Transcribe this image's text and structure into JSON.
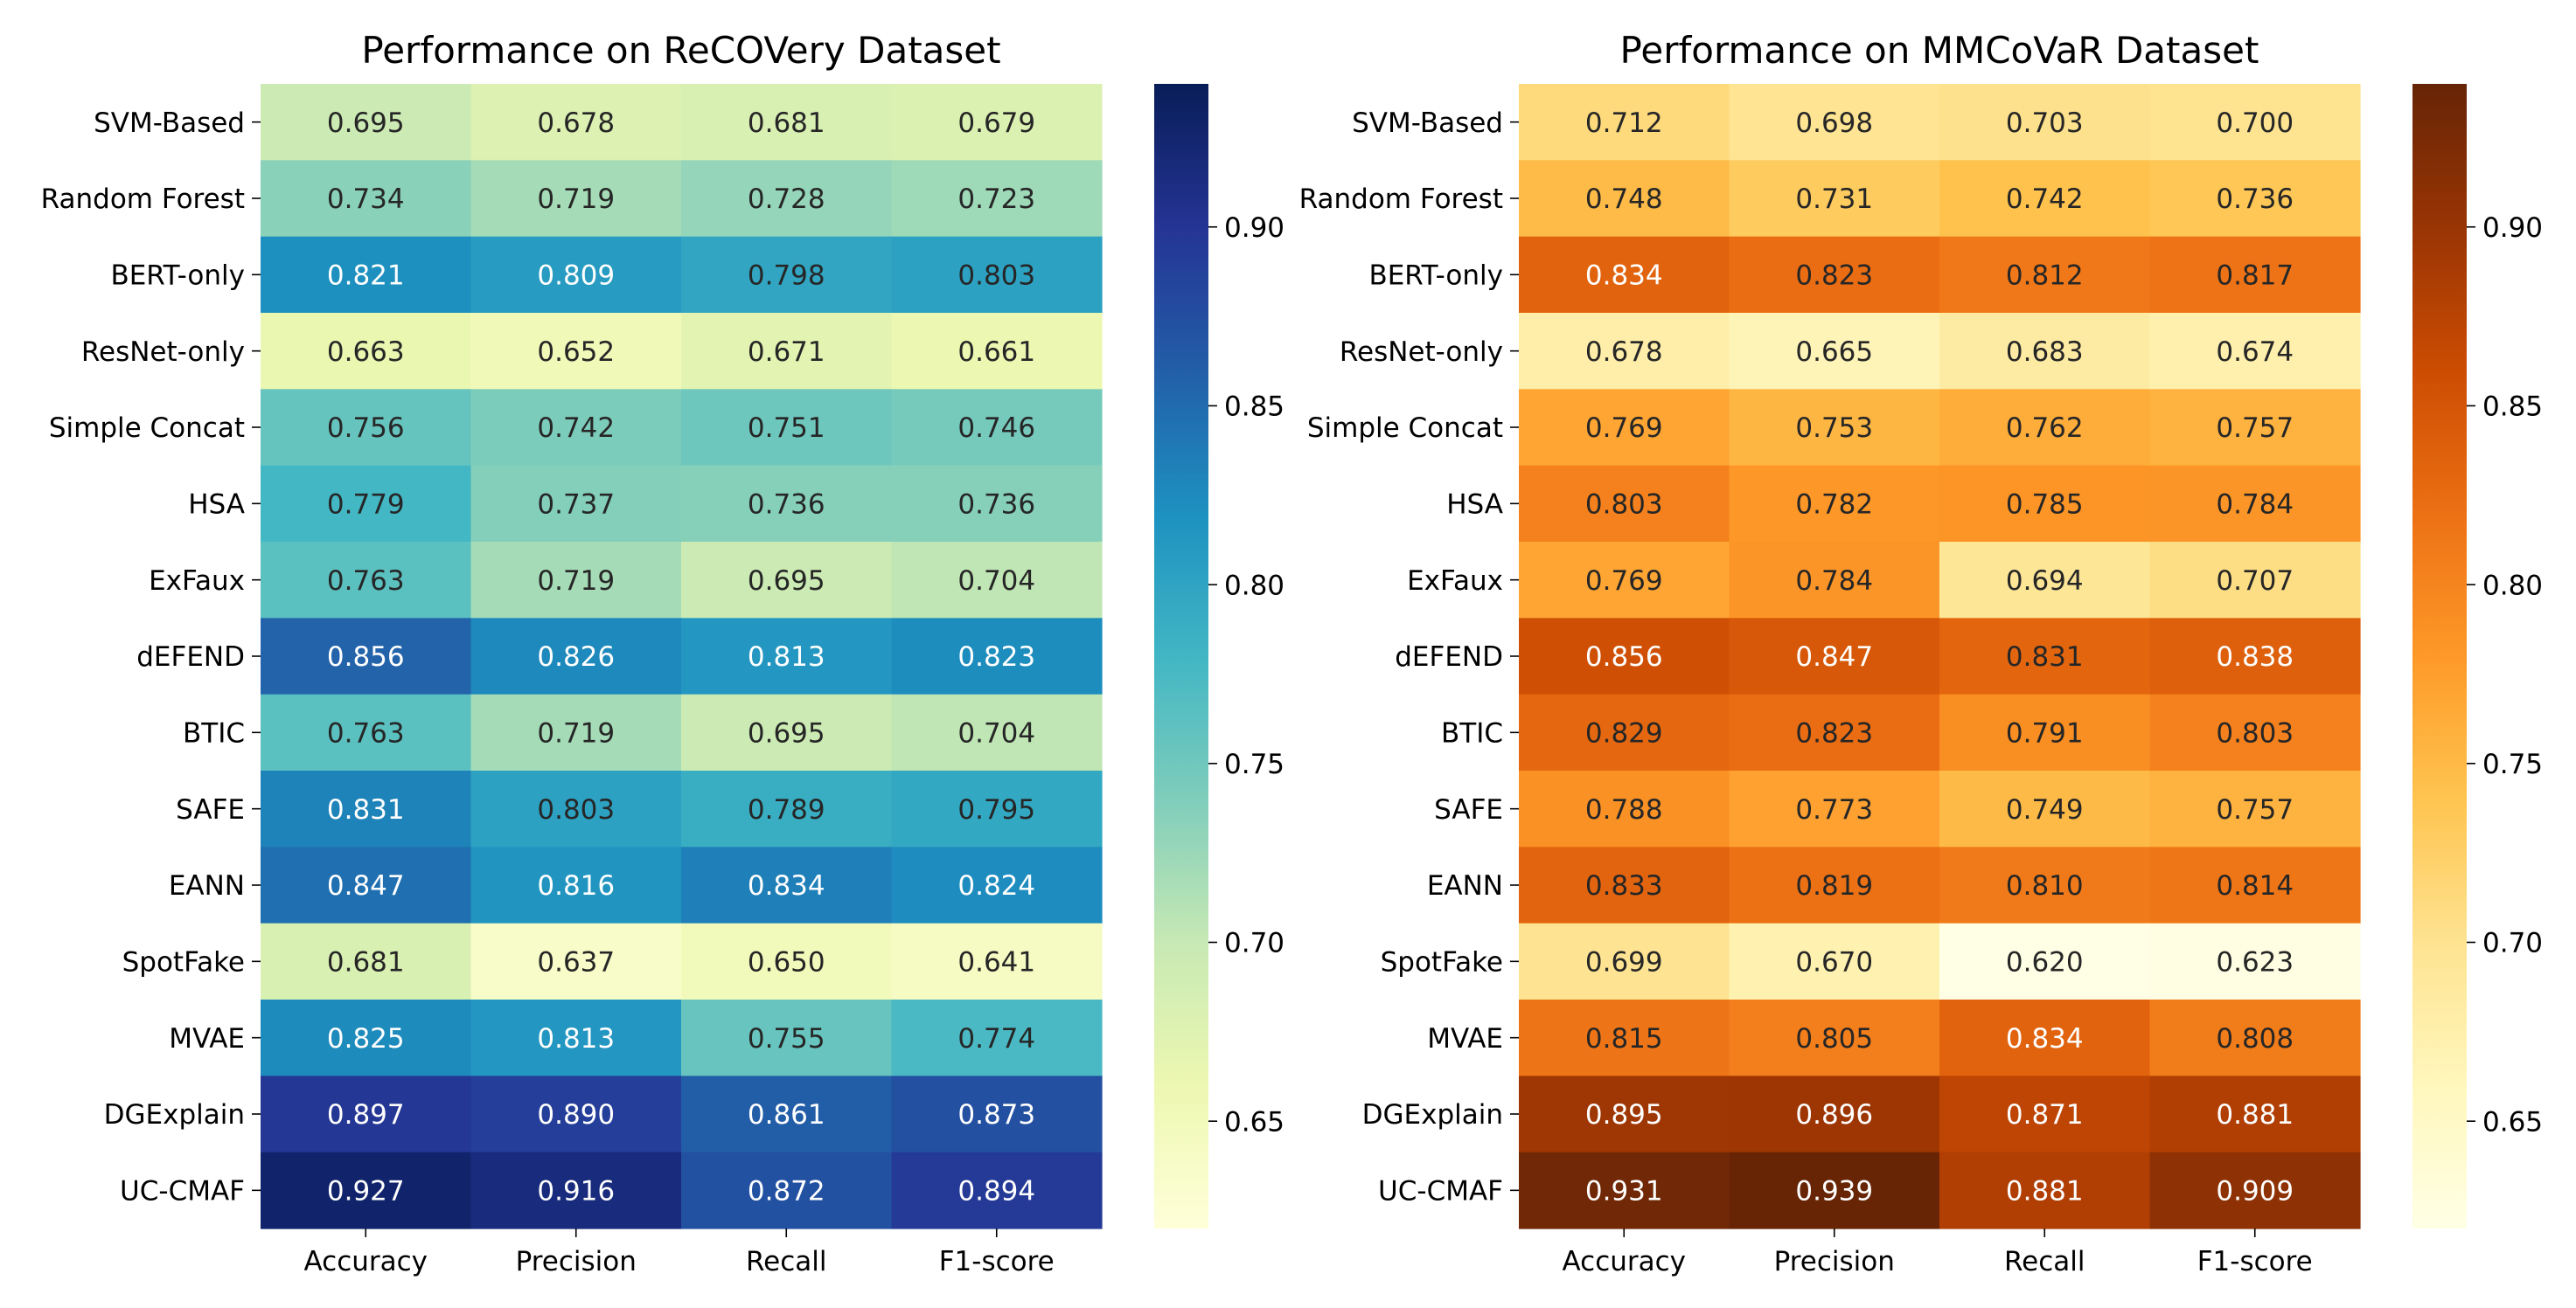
{
  "chart_data": [
    {
      "type": "heatmap",
      "title": "Performance on ReCOVery Dataset",
      "colormap": "YlGnBu",
      "rows": [
        "SVM-Based",
        "Random Forest",
        "BERT-only",
        "ResNet-only",
        "Simple Concat",
        "HSA",
        "ExFaux",
        "dEFEND",
        "BTIC",
        "SAFE",
        "EANN",
        "SpotFake",
        "MVAE",
        "DGExplain",
        "UC-CMAF"
      ],
      "columns": [
        "Accuracy",
        "Precision",
        "Recall",
        "F1-score"
      ],
      "values": [
        [
          0.695,
          0.678,
          0.681,
          0.679
        ],
        [
          0.734,
          0.719,
          0.728,
          0.723
        ],
        [
          0.821,
          0.809,
          0.798,
          0.803
        ],
        [
          0.663,
          0.652,
          0.671,
          0.661
        ],
        [
          0.756,
          0.742,
          0.751,
          0.746
        ],
        [
          0.779,
          0.737,
          0.736,
          0.736
        ],
        [
          0.763,
          0.719,
          0.695,
          0.704
        ],
        [
          0.856,
          0.826,
          0.813,
          0.823
        ],
        [
          0.763,
          0.719,
          0.695,
          0.704
        ],
        [
          0.831,
          0.803,
          0.789,
          0.795
        ],
        [
          0.847,
          0.816,
          0.834,
          0.824
        ],
        [
          0.681,
          0.637,
          0.65,
          0.641
        ],
        [
          0.825,
          0.813,
          0.755,
          0.774
        ],
        [
          0.897,
          0.89,
          0.861,
          0.873
        ],
        [
          0.927,
          0.916,
          0.872,
          0.894
        ]
      ],
      "color_range": [
        0.62,
        0.94
      ],
      "colorbar_ticks": [
        0.65,
        0.7,
        0.75,
        0.8,
        0.85,
        0.9
      ],
      "colorbar_tick_labels": [
        "0.65",
        "0.70",
        "0.75",
        "0.80",
        "0.85",
        "0.90"
      ],
      "colors": [
        "#ffffd9",
        "#edf8b1",
        "#c7e9b4",
        "#7fcdbb",
        "#41b6c4",
        "#1d91c0",
        "#225ea8",
        "#253494",
        "#081d58"
      ]
    },
    {
      "type": "heatmap",
      "title": "Performance on MMCoVaR Dataset",
      "colormap": "YlOrBr",
      "rows": [
        "SVM-Based",
        "Random Forest",
        "BERT-only",
        "ResNet-only",
        "Simple Concat",
        "HSA",
        "ExFaux",
        "dEFEND",
        "BTIC",
        "SAFE",
        "EANN",
        "SpotFake",
        "MVAE",
        "DGExplain",
        "UC-CMAF"
      ],
      "columns": [
        "Accuracy",
        "Precision",
        "Recall",
        "F1-score"
      ],
      "values": [
        [
          0.712,
          0.698,
          0.703,
          0.7
        ],
        [
          0.748,
          0.731,
          0.742,
          0.736
        ],
        [
          0.834,
          0.823,
          0.812,
          0.817
        ],
        [
          0.678,
          0.665,
          0.683,
          0.674
        ],
        [
          0.769,
          0.753,
          0.762,
          0.757
        ],
        [
          0.803,
          0.782,
          0.785,
          0.784
        ],
        [
          0.769,
          0.784,
          0.694,
          0.707
        ],
        [
          0.856,
          0.847,
          0.831,
          0.838
        ],
        [
          0.829,
          0.823,
          0.791,
          0.803
        ],
        [
          0.788,
          0.773,
          0.749,
          0.757
        ],
        [
          0.833,
          0.819,
          0.81,
          0.814
        ],
        [
          0.699,
          0.67,
          0.62,
          0.623
        ],
        [
          0.815,
          0.805,
          0.834,
          0.808
        ],
        [
          0.895,
          0.896,
          0.871,
          0.881
        ],
        [
          0.931,
          0.939,
          0.881,
          0.909
        ]
      ],
      "color_range": [
        0.62,
        0.94
      ],
      "colorbar_ticks": [
        0.65,
        0.7,
        0.75,
        0.8,
        0.85,
        0.9
      ],
      "colorbar_tick_labels": [
        "0.65",
        "0.70",
        "0.75",
        "0.80",
        "0.85",
        "0.90"
      ],
      "colors": [
        "#ffffe5",
        "#fff7bc",
        "#fee391",
        "#fec44f",
        "#fe9929",
        "#ec7014",
        "#cc4c02",
        "#993404",
        "#662506"
      ]
    }
  ]
}
